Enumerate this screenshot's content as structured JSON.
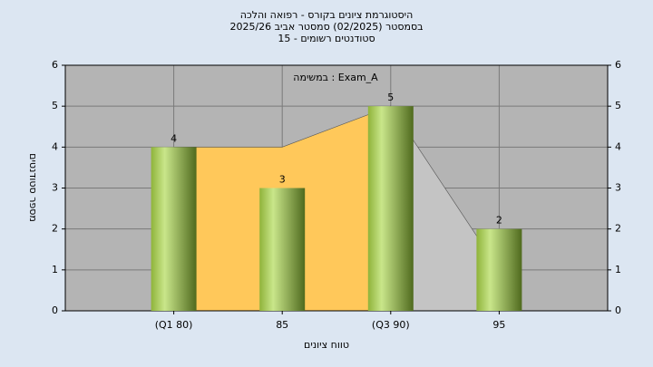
{
  "chart_data": {
    "type": "bar",
    "title": [
      "היסטוגרמת ציונים בקורס - רפואה והלכה",
      "בסמסטר  (02/2025)  סמסטר אביב 2025/26",
      "סטודנטים רשומים - 15"
    ],
    "annotation": "במשימה : Exam_A",
    "xlabel": "טווח ציונים",
    "ylabel": "מספר סטודנטים",
    "categories": [
      "(Q1 80)",
      "85",
      "(Q3 90)",
      "95"
    ],
    "values": [
      4,
      3,
      5,
      2
    ],
    "color": "#8db33c",
    "areas": [
      {
        "color": "#ffc85a",
        "values": [
          4,
          4,
          5,
          null
        ]
      },
      {
        "color": "#c4c4c4",
        "values": [
          null,
          null,
          5,
          1
        ]
      }
    ],
    "ylim": [
      0,
      6
    ],
    "yticks": [
      0,
      1,
      2,
      3,
      4,
      5,
      6
    ],
    "y2lim": [
      0,
      6
    ],
    "y2ticks": [
      0,
      1,
      2,
      3,
      4,
      5,
      6
    ],
    "grid": true
  }
}
